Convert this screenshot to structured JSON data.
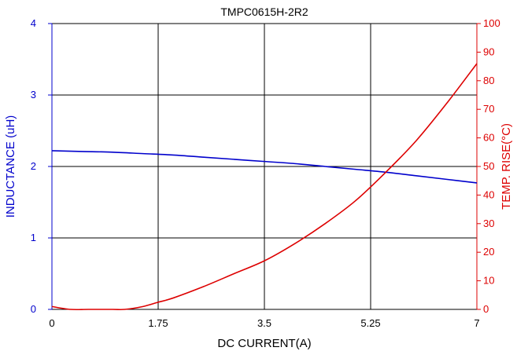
{
  "chart_data": {
    "type": "line",
    "title": "TMPC0615H-2R2",
    "xlabel": "DC CURRENT(A)",
    "ylabel_left": "INDUCTANCE (uH)",
    "ylabel_right": "TEMP. RISE(°C)",
    "xlim": [
      0,
      7
    ],
    "ylim_left": [
      0,
      4
    ],
    "ylim_right": [
      0,
      100
    ],
    "x_ticks": [
      "0",
      "1.75",
      "3.5",
      "5.25",
      "7"
    ],
    "y_left_ticks": [
      "0",
      "1",
      "2",
      "3",
      "4"
    ],
    "y_right_ticks": [
      "0",
      "10",
      "20",
      "30",
      "40",
      "50",
      "60",
      "70",
      "80",
      "90",
      "100"
    ],
    "grid": true,
    "colors": {
      "left_axis": "#0000cc",
      "right_axis": "#dd0000",
      "grid": "#000000"
    },
    "series": [
      {
        "axis": "left",
        "color": "#0000cc",
        "x": [
          0,
          0.5,
          1,
          1.5,
          2,
          2.5,
          3,
          3.5,
          4,
          4.5,
          5,
          5.5,
          6,
          6.5,
          7
        ],
        "y": [
          2.22,
          2.21,
          2.2,
          2.18,
          2.16,
          2.13,
          2.1,
          2.07,
          2.04,
          2.0,
          1.96,
          1.92,
          1.87,
          1.82,
          1.77
        ]
      },
      {
        "axis": "right",
        "color": "#dd0000",
        "x": [
          0,
          0.3,
          0.6,
          1.0,
          1.2,
          1.5,
          1.75,
          2.0,
          2.5,
          3.0,
          3.5,
          4.0,
          4.5,
          5.0,
          5.5,
          6.0,
          6.5,
          7.0
        ],
        "y": [
          1,
          0,
          0,
          0,
          0,
          1,
          2.5,
          4,
          8,
          12.5,
          17,
          23,
          30,
          38,
          48,
          59,
          72,
          86
        ]
      }
    ]
  }
}
